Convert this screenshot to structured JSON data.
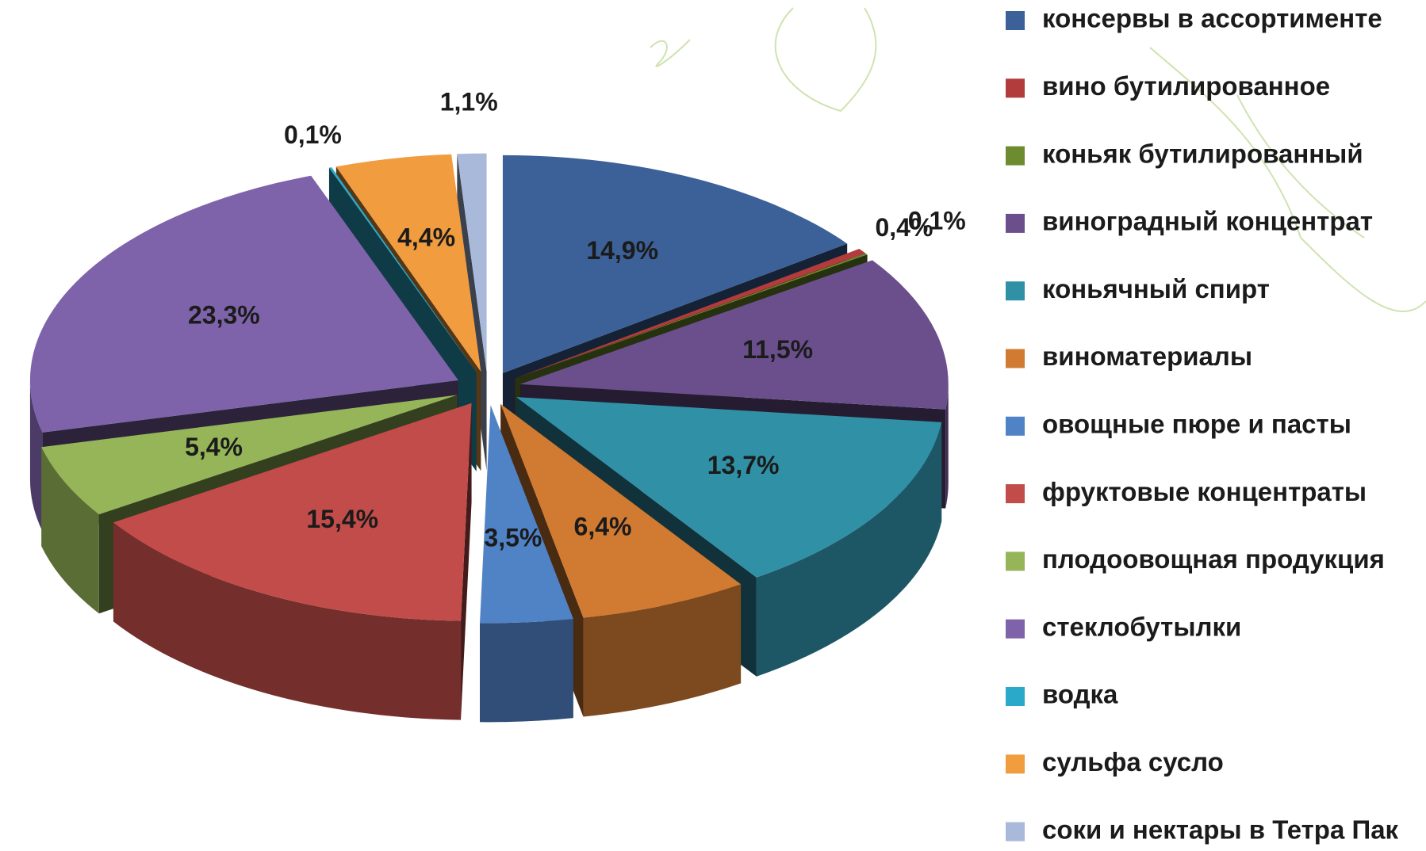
{
  "chart_data": {
    "type": "pie",
    "categories": [
      "консервы в ассортименте",
      "вино бутилированное",
      "коньяк бутилированный",
      "виноградный концентрат",
      "коньячный спирт",
      "виноматериалы",
      "овощные пюре и пасты",
      "фруктовые концентраты",
      "плодоовощная продукция",
      "стеклобутылки",
      "водка",
      "сульфа сусло",
      "соки и нектары в Тетра Пак"
    ],
    "values": [
      14.9,
      0.4,
      0.1,
      11.5,
      13.7,
      6.4,
      3.5,
      15.4,
      5.4,
      23.3,
      0.1,
      4.4,
      1.1
    ],
    "value_labels": [
      "14,9%",
      "0,4%",
      "0,1%",
      "11,5%",
      "13,7%",
      "6,4%",
      "3,5%",
      "15,4%",
      "5,4%",
      "23,3%",
      "0,1%",
      "4,4%",
      "1,1%"
    ],
    "colors": [
      "#3b6198",
      "#b23c3c",
      "#6c8c2f",
      "#6b4f8c",
      "#3090a6",
      "#d17a32",
      "#5082c6",
      "#c24c4a",
      "#95b558",
      "#7e63aa",
      "#2ba9c9",
      "#f29c40",
      "#a9b9da"
    ],
    "legend": "right"
  }
}
